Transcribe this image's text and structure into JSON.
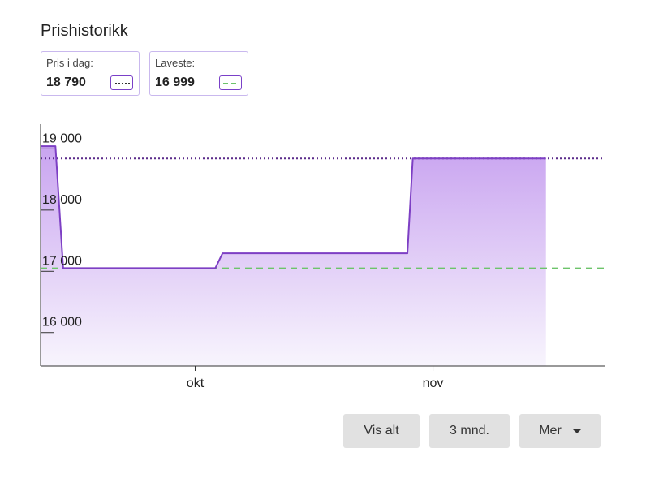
{
  "title": "Prishistorikk",
  "cards": {
    "today": {
      "label": "Pris i dag:",
      "value": "18 790"
    },
    "lowest": {
      "label": "Laveste:",
      "value": "16 999"
    }
  },
  "colors": {
    "line": "#7d3fc4",
    "fill_top": "#c9a4f0",
    "fill_bottom": "#f8f5fd",
    "today_ref": "#5a2a8a",
    "lowest_ref": "#6cc46a",
    "axis": "#333333"
  },
  "chart_data": {
    "type": "area",
    "x_labels": [
      "okt",
      "nov"
    ],
    "y_ticks": [
      16000,
      17000,
      18000,
      19000
    ],
    "y_tick_labels": [
      "16 000",
      "17 000",
      "18 000",
      "19 000"
    ],
    "ylim": [
      15400,
      19350
    ],
    "x_range_days": [
      0,
      95
    ],
    "x_label_days": [
      26,
      66
    ],
    "series": [
      {
        "points": [
          [
            0,
            18990
          ],
          [
            2.5,
            18990
          ],
          [
            3.8,
            16999
          ],
          [
            29.4,
            16999
          ],
          [
            30.6,
            17240
          ],
          [
            61.7,
            17240
          ],
          [
            62.6,
            18790
          ],
          [
            85,
            18790
          ]
        ]
      }
    ],
    "reference_lines": [
      {
        "value": 18790,
        "style": "dotted"
      },
      {
        "value": 16999,
        "style": "dashed"
      }
    ]
  },
  "buttons": {
    "all": "Vis alt",
    "three_months": "3 mnd.",
    "more": "Mer"
  }
}
